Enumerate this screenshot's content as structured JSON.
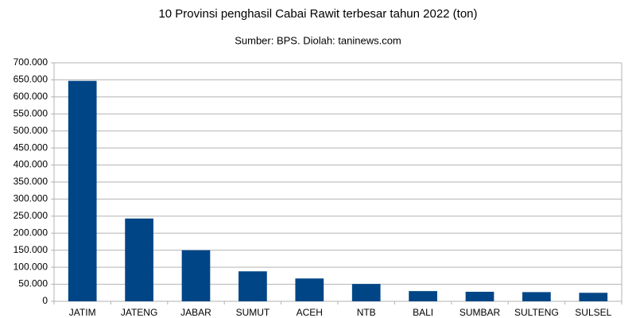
{
  "chart_data": {
    "type": "bar",
    "title": "10 Provinsi penghasil Cabai Rawit terbesar tahun 2022 (ton)",
    "subtitle": "Sumber: BPS. Diolah: taninews.com",
    "categories": [
      "JATIM",
      "JATENG",
      "JABAR",
      "SUMUT",
      "ACEH",
      "NTB",
      "BALI",
      "SUMBAR",
      "SULTENG",
      "SULSEL"
    ],
    "values": [
      647000,
      243000,
      150000,
      88000,
      67000,
      51000,
      30000,
      28000,
      27000,
      25000
    ],
    "color": "#004586",
    "ylim": [
      0,
      700000
    ],
    "yticks": [
      0,
      {
        "value": 50000,
        "label": "50.000"
      },
      {
        "value": 100000,
        "label": "100.000"
      },
      {
        "value": 150000,
        "label": "150.000"
      },
      {
        "value": 200000,
        "label": "200.000"
      },
      {
        "value": 250000,
        "label": "250.000"
      },
      {
        "value": 300000,
        "label": "300.000"
      },
      {
        "value": 350000,
        "label": "350.000"
      },
      {
        "value": 400000,
        "label": "400.000"
      },
      {
        "value": 450000,
        "label": "450.000"
      },
      {
        "value": 500000,
        "label": "500.000"
      },
      {
        "value": 550000,
        "label": "550.000"
      },
      {
        "value": 600000,
        "label": "600.000"
      },
      {
        "value": 650000,
        "label": "650.000"
      },
      {
        "value": 700000,
        "label": "700.000"
      }
    ],
    "grid": true
  }
}
